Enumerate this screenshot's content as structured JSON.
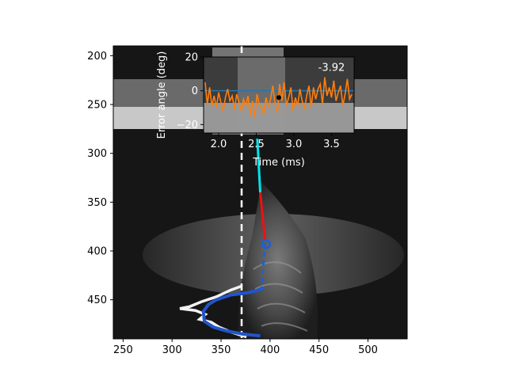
{
  "chart_data": [
    {
      "type": "image",
      "xlim": [
        240,
        540
      ],
      "ylim": [
        490,
        190
      ],
      "x_ticks": [
        250,
        300,
        350,
        400,
        450,
        500
      ],
      "y_ticks": [
        200,
        250,
        300,
        350,
        400,
        450
      ],
      "x_tick_labels": [
        "250",
        "300",
        "350",
        "400",
        "450",
        "500"
      ],
      "y_tick_labels": [
        "200",
        "250",
        "300",
        "350",
        "400",
        "450"
      ],
      "reference_line": {
        "x": 371,
        "style": "dashed",
        "color": "#ffffff"
      },
      "cyan_segment": {
        "x": [
          387,
          390
        ],
        "y": [
          285,
          340
        ],
        "color": "#00e5ee"
      },
      "red_segment": {
        "x": [
          390,
          395
        ],
        "y": [
          340,
          390
        ],
        "color": "#ee1111"
      },
      "blue_dashed_segment": {
        "x": [
          395,
          391
        ],
        "y": [
          392,
          440
        ],
        "color": "#1f5fd0"
      },
      "blue_circle": {
        "x": 396,
        "y": 393,
        "color": "#1f5fd0"
      },
      "white_profile": {
        "color": "#f2f2f2",
        "points": [
          [
            371,
            436
          ],
          [
            360,
            440
          ],
          [
            345,
            447
          ],
          [
            330,
            452
          ],
          [
            318,
            457
          ],
          [
            308,
            459
          ],
          [
            324,
            461
          ],
          [
            334,
            465
          ],
          [
            328,
            470
          ],
          [
            340,
            473
          ],
          [
            348,
            478
          ],
          [
            360,
            483
          ],
          [
            376,
            488
          ]
        ]
      },
      "blue_profile": {
        "color": "#2255cc",
        "points": [
          [
            394,
            438
          ],
          [
            385,
            441
          ],
          [
            376,
            443
          ],
          [
            360,
            445
          ],
          [
            345,
            450
          ],
          [
            337,
            455
          ],
          [
            332,
            462
          ],
          [
            333,
            472
          ],
          [
            342,
            478
          ],
          [
            356,
            482
          ],
          [
            372,
            485
          ],
          [
            390,
            487
          ]
        ]
      }
    },
    {
      "type": "line",
      "ylabel": "Error angle (deg)",
      "xlabel": "Time (ms)",
      "xlim": [
        1.8,
        3.8
      ],
      "ylim": [
        -25,
        20
      ],
      "x_ticks": [
        2.0,
        2.5,
        3.0,
        3.5
      ],
      "y_ticks": [
        20,
        0,
        -20
      ],
      "x_tick_labels": [
        "2.0",
        "2.5",
        "3.0",
        "3.5"
      ],
      "y_tick_labels": [
        "20",
        "0",
        "−20"
      ],
      "annotation": "-3.92",
      "annotation_position": {
        "x": 3.5,
        "y": 10
      },
      "series": [
        {
          "color": "#ff7f0e",
          "x": [
            1.82,
            1.85,
            1.88,
            1.91,
            1.94,
            1.97,
            2.0,
            2.03,
            2.06,
            2.09,
            2.12,
            2.15,
            2.18,
            2.21,
            2.24,
            2.27,
            2.3,
            2.33,
            2.36,
            2.39,
            2.42,
            2.45,
            2.48,
            2.51,
            2.54,
            2.57,
            2.6,
            2.63,
            2.66,
            2.69,
            2.72,
            2.75,
            2.78,
            2.81,
            2.84,
            2.87,
            2.9,
            2.93,
            2.96,
            2.99,
            3.02,
            3.05,
            3.08,
            3.11,
            3.14,
            3.17,
            3.2,
            3.23,
            3.26,
            3.29,
            3.32,
            3.35,
            3.38,
            3.41,
            3.44,
            3.47,
            3.5,
            3.53,
            3.56,
            3.59,
            3.62,
            3.65,
            3.68,
            3.71,
            3.74,
            3.77
          ],
          "y": [
            5,
            -8,
            2,
            -9,
            -3,
            -10,
            -1,
            -7,
            -12,
            -4,
            1,
            -6,
            -3,
            -11,
            -2,
            -7,
            -12,
            -5,
            -9,
            -3,
            -14,
            -6,
            -16,
            -2,
            -8,
            -10,
            -14,
            -4,
            -10,
            -5,
            3,
            -8,
            -13,
            4,
            -6,
            5,
            -9,
            -4,
            2,
            -12,
            -4,
            -9,
            1,
            -6,
            -11,
            -3,
            3,
            -10,
            2,
            -5,
            1,
            4,
            -8,
            8,
            -3,
            2,
            -4,
            6,
            -6,
            -1,
            3,
            -9,
            -2,
            7,
            -5,
            -2
          ]
        },
        {
          "color": "#1f77b4",
          "x": [
            1.8,
            3.8
          ],
          "y": [
            0,
            0
          ]
        }
      ],
      "markers": [
        {
          "x": 2.8,
          "y": -4,
          "color": "#000000"
        }
      ]
    }
  ]
}
